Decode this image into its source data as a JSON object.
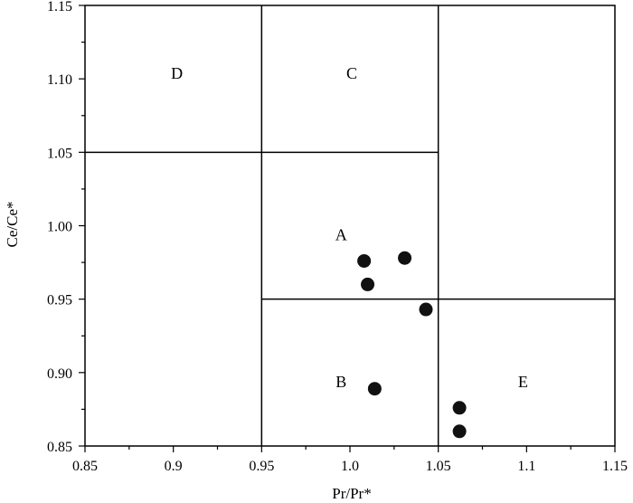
{
  "chart_data": {
    "type": "scatter",
    "title": "",
    "xlabel": "Pr/Pr*",
    "ylabel": "Ce/Ce*",
    "xlim": [
      0.85,
      1.15
    ],
    "ylim": [
      0.85,
      1.15
    ],
    "x_ticks": [
      "0.85",
      "0.9",
      "0.95",
      "1.0",
      "1.05",
      "1.1",
      "1.15"
    ],
    "y_ticks": [
      "0.85",
      "0.90",
      "0.95",
      "1.00",
      "1.05",
      "1.10",
      "1.15"
    ],
    "grid": false,
    "legend": "none",
    "region_boundaries": {
      "vertical": [
        {
          "x": 0.95,
          "y_from": 0.85,
          "y_to": 1.15
        },
        {
          "x": 1.05,
          "y_from": 0.85,
          "y_to": 1.15
        }
      ],
      "horizontal": [
        {
          "y": 1.05,
          "x_from": 0.85,
          "x_to": 1.05
        },
        {
          "y": 0.95,
          "x_from": 0.95,
          "x_to": 1.15
        }
      ]
    },
    "regions": [
      {
        "label": "A",
        "x": 0.995,
        "y": 0.99
      },
      {
        "label": "B",
        "x": 0.995,
        "y": 0.89
      },
      {
        "label": "C",
        "x": 1.001,
        "y": 1.1
      },
      {
        "label": "D",
        "x": 0.902,
        "y": 1.1
      },
      {
        "label": "E",
        "x": 1.098,
        "y": 0.89
      }
    ],
    "series": [
      {
        "points": [
          {
            "x": 1.008,
            "y": 0.976
          },
          {
            "x": 1.031,
            "y": 0.978
          },
          {
            "x": 1.01,
            "y": 0.96
          },
          {
            "x": 1.043,
            "y": 0.943
          },
          {
            "x": 1.014,
            "y": 0.889
          },
          {
            "x": 1.062,
            "y": 0.876
          },
          {
            "x": 1.062,
            "y": 0.86
          }
        ]
      }
    ],
    "marker_color": "#111111"
  }
}
